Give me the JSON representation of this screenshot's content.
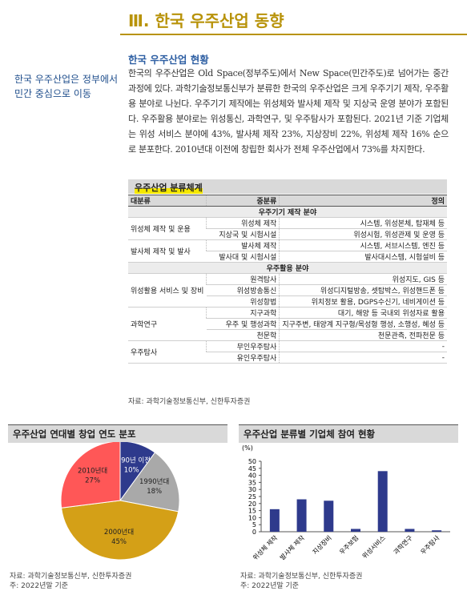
{
  "header": {
    "title": "Ⅲ. 한국 우주산업 동향"
  },
  "sidebar": {
    "text": "한국 우주산업은 정부에서 민간 중심으로 이동"
  },
  "section": {
    "heading": "한국 우주산업 현황",
    "paragraph": "한국의 우주산업은 Old Space(정부주도)에서 New Space(민간주도)로 넘어가는 중간 과정에 있다. 과학기술정보통신부가 분류한 한국의 우주산업은 크게 우주기기 제작, 우주활용 분야로 나뉜다. 우주기기 제작에는 위성체와 발사체 제작 및 지상국 운영 분야가 포함된다. 우주활용 분야로는 위성통신, 과학연구, 및 우주탐사가 포함된다. 2021년 기준 기업체는 위성 서비스 분야에 43%, 발사체 제작 23%, 지상장비 22%, 위성체 제작 16% 순으로 분포한다. 2010년대 이전에 창립한 회사가 전체 우주산업에서 73%를 차지한다."
  },
  "table": {
    "title": "우주산업 분류체계",
    "columns": [
      "대분류",
      "중분류",
      "정의"
    ],
    "sections": [
      {
        "title": "우주기기 제작 분야",
        "groups": [
          {
            "name": "위성체 제작 및 운용",
            "items": [
              {
                "sub": "위성체 제작",
                "def": "시스템, 위성본체, 탑재체 등"
              },
              {
                "sub": "지상국 및 시험시설",
                "def": "위성시험, 위성관제 및 운영 등"
              }
            ]
          },
          {
            "name": "발사체 제작 및 발사",
            "items": [
              {
                "sub": "발사체 제작",
                "def": "시스템, 서브시스템, 엔진 등"
              },
              {
                "sub": "발사대 및 시험시설",
                "def": "발사대시스템, 시험설비 등"
              }
            ]
          }
        ]
      },
      {
        "title": "우주활용 분야",
        "groups": [
          {
            "name": "위성활용 서비스 및 장비",
            "items": [
              {
                "sub": "원격탐사",
                "def": "위성지도, GIS 등"
              },
              {
                "sub": "위성방송통신",
                "def": "위성디지털방송, 셋탑박스, 위성핸드폰 등"
              },
              {
                "sub": "위성항법",
                "def": "위치정보 활용, DGPS수신기, 네비게이션 등"
              }
            ]
          },
          {
            "name": "과학연구",
            "items": [
              {
                "sub": "지구과학",
                "def": "대기, 해양 등 국내외 위성자료 활용"
              },
              {
                "sub": "우주 및 행성과학",
                "def": "지구주변, 태양계 지구형/목성형 행성, 소행성, 혜성 등"
              },
              {
                "sub": "천문학",
                "def": "천문관측, 전파천문 등"
              }
            ]
          },
          {
            "name": "우주탐사",
            "items": [
              {
                "sub": "무인우주탐사",
                "def": "-"
              },
              {
                "sub": "유인우주탐사",
                "def": "-"
              }
            ]
          }
        ]
      }
    ],
    "source": "자료: 과학기술정보통신부, 신한투자증권"
  },
  "chart_data": [
    {
      "type": "pie",
      "title": "우주산업 연대별 창업 연도 분포",
      "categories": [
        "1990년 이전",
        "1990년대",
        "2000년대",
        "2010년대"
      ],
      "values": [
        10,
        18,
        45,
        27
      ],
      "value_labels": [
        "10%",
        "18%",
        "45%",
        "27%"
      ],
      "colors": [
        "#2e3a8c",
        "#a9a9a9",
        "#d4a017",
        "#ff5757"
      ],
      "source": "자료: 과학기술정보통신부, 신한투자증권",
      "note": "주: 2022년말 기준"
    },
    {
      "type": "bar",
      "title": "우주산업 분류별 기업체 참여 현황",
      "y_label": "(%)",
      "categories": [
        "위성체 제작",
        "발사체 제작",
        "지상장비",
        "우주보험",
        "위성서비스",
        "과학연구",
        "우주탐사"
      ],
      "values": [
        16,
        23,
        22,
        2,
        43,
        2,
        1
      ],
      "color": "#2e3a8c",
      "ylim": [
        0,
        50
      ],
      "yticks": [
        0,
        5,
        10,
        15,
        20,
        25,
        30,
        35,
        40,
        45,
        50
      ],
      "source": "자료: 과학기술정보통신부, 신한투자증권",
      "note": "주: 2022년말 기준"
    }
  ]
}
